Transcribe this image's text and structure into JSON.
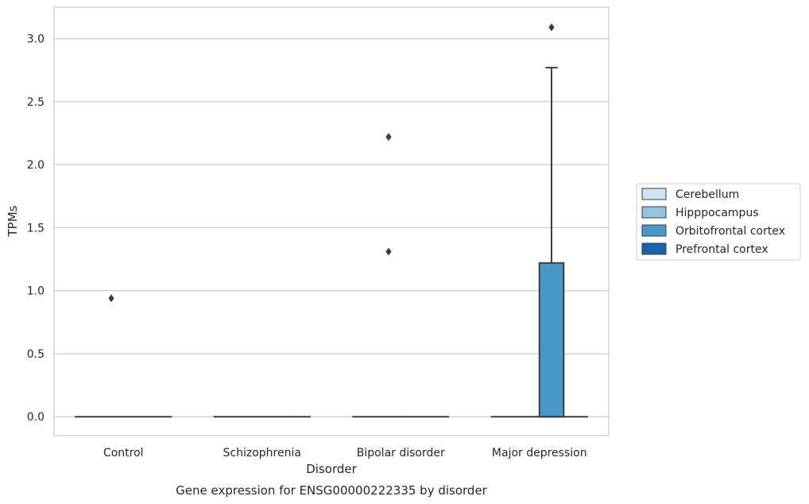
{
  "chart_data": {
    "type": "box",
    "caption": "Gene expression for ENSG00000222335 by disorder",
    "xlabel": "Disorder",
    "ylabel": "TPMs",
    "ylim": [
      -0.15,
      3.25
    ],
    "yticks": [
      0.0,
      0.5,
      1.0,
      1.5,
      2.0,
      2.5,
      3.0
    ],
    "ytick_labels": [
      "0.0",
      "0.5",
      "1.0",
      "1.5",
      "2.0",
      "2.5",
      "3.0"
    ],
    "grid": "horizontal",
    "legend_position": "right",
    "categories": [
      "Control",
      "Schizophrenia",
      "Bipolar disorder",
      "Major depression"
    ],
    "series": [
      {
        "name": "Cerebellum",
        "color": "#d0e1f2"
      },
      {
        "name": "Hipppocampus",
        "color": "#94c4df"
      },
      {
        "name": "Orbitofrontal cortex",
        "color": "#4a98c9"
      },
      {
        "name": "Prefrontal cortex",
        "color": "#1764ab"
      }
    ],
    "boxes": [
      {
        "category": 0,
        "series": 0,
        "q1": 0,
        "median": 0,
        "q3": 0,
        "whisker_low": 0,
        "whisker_high": 0,
        "outliers": []
      },
      {
        "category": 0,
        "series": 1,
        "q1": 0,
        "median": 0,
        "q3": 0,
        "whisker_low": 0,
        "whisker_high": 0,
        "outliers": [
          0.94
        ]
      },
      {
        "category": 0,
        "series": 2,
        "q1": 0,
        "median": 0,
        "q3": 0,
        "whisker_low": 0,
        "whisker_high": 0,
        "outliers": []
      },
      {
        "category": 0,
        "series": 3,
        "q1": 0,
        "median": 0,
        "q3": 0,
        "whisker_low": 0,
        "whisker_high": 0,
        "outliers": []
      },
      {
        "category": 1,
        "series": 0,
        "q1": 0,
        "median": 0,
        "q3": 0,
        "whisker_low": 0,
        "whisker_high": 0,
        "outliers": []
      },
      {
        "category": 1,
        "series": 1,
        "q1": 0,
        "median": 0,
        "q3": 0,
        "whisker_low": 0,
        "whisker_high": 0,
        "outliers": []
      },
      {
        "category": 1,
        "series": 2,
        "q1": 0,
        "median": 0,
        "q3": 0,
        "whisker_low": 0,
        "whisker_high": 0,
        "outliers": []
      },
      {
        "category": 1,
        "series": 3,
        "q1": 0,
        "median": 0,
        "q3": 0,
        "whisker_low": 0,
        "whisker_high": 0,
        "outliers": []
      },
      {
        "category": 2,
        "series": 0,
        "q1": 0,
        "median": 0,
        "q3": 0,
        "whisker_low": 0,
        "whisker_high": 0,
        "outliers": []
      },
      {
        "category": 2,
        "series": 1,
        "q1": 0,
        "median": 0,
        "q3": 0,
        "whisker_low": 0,
        "whisker_high": 0,
        "outliers": [
          2.22,
          1.31
        ]
      },
      {
        "category": 2,
        "series": 2,
        "q1": 0,
        "median": 0,
        "q3": 0,
        "whisker_low": 0,
        "whisker_high": 0,
        "outliers": []
      },
      {
        "category": 2,
        "series": 3,
        "q1": 0,
        "median": 0,
        "q3": 0,
        "whisker_low": 0,
        "whisker_high": 0,
        "outliers": []
      },
      {
        "category": 3,
        "series": 0,
        "q1": 0,
        "median": 0,
        "q3": 0,
        "whisker_low": 0,
        "whisker_high": 0,
        "outliers": []
      },
      {
        "category": 3,
        "series": 1,
        "q1": 0,
        "median": 0,
        "q3": 0,
        "whisker_low": 0,
        "whisker_high": 0,
        "outliers": []
      },
      {
        "category": 3,
        "series": 2,
        "q1": 0,
        "median": 0,
        "q3": 1.22,
        "whisker_low": 0,
        "whisker_high": 2.77,
        "outliers": [
          3.09
        ]
      },
      {
        "category": 3,
        "series": 3,
        "q1": 0,
        "median": 0,
        "q3": 0,
        "whisker_low": 0,
        "whisker_high": 0,
        "outliers": []
      }
    ]
  }
}
